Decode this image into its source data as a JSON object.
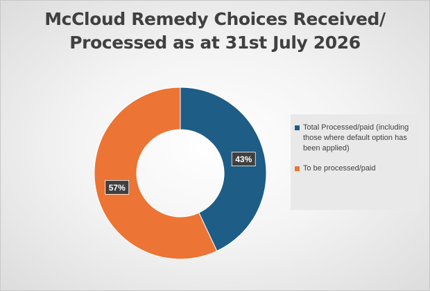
{
  "chart_data": {
    "type": "pie",
    "title_lines": [
      "McCloud Remedy Choices Received/",
      "Processed as at 31st July 2026"
    ],
    "slices": [
      {
        "label": "Total Processed/paid (including those where default option has been applied)",
        "value": 43,
        "display": "43%",
        "color": "#1d5d86"
      },
      {
        "label": "To be processed/paid",
        "value": 57,
        "display": "57%",
        "color": "#ec7434"
      }
    ],
    "donut": true,
    "legend_position": "right"
  }
}
